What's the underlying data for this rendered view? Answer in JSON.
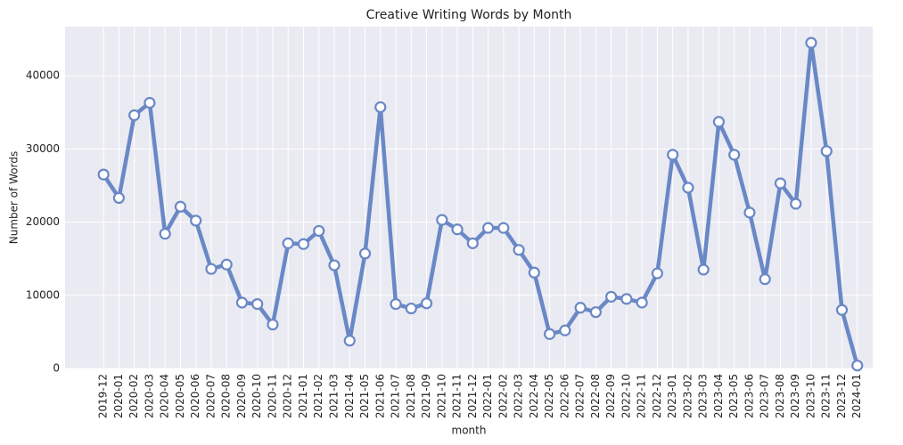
{
  "chart_data": {
    "type": "line",
    "title": "Creative Writing Words by Month",
    "x_label": "month",
    "y_label": "Number of Words",
    "categories": [
      "2019-12",
      "2020-01",
      "2020-02",
      "2020-03",
      "2020-04",
      "2020-05",
      "2020-06",
      "2020-07",
      "2020-08",
      "2020-09",
      "2020-10",
      "2020-11",
      "2020-12",
      "2021-01",
      "2021-02",
      "2021-03",
      "2021-04",
      "2021-05",
      "2021-06",
      "2021-07",
      "2021-08",
      "2021-09",
      "2021-10",
      "2021-11",
      "2021-12",
      "2022-01",
      "2022-02",
      "2022-03",
      "2022-04",
      "2022-05",
      "2022-06",
      "2022-07",
      "2022-08",
      "2022-09",
      "2022-10",
      "2022-11",
      "2022-12",
      "2023-01",
      "2023-02",
      "2023-03",
      "2023-04",
      "2023-05",
      "2023-06",
      "2023-07",
      "2023-08",
      "2023-09",
      "2023-10",
      "2023-11",
      "2023-12",
      "2024-01"
    ],
    "values": [
      26500,
      23300,
      34600,
      36300,
      18400,
      22100,
      20200,
      13600,
      14200,
      9000,
      8800,
      6000,
      17100,
      17000,
      18800,
      14100,
      3800,
      15700,
      35700,
      8800,
      8200,
      8900,
      20300,
      19000,
      17100,
      19200,
      19200,
      16200,
      13100,
      4700,
      5200,
      8300,
      7700,
      9800,
      9500,
      9000,
      13000,
      29200,
      24700,
      13500,
      33700,
      29200,
      21300,
      12200,
      25300,
      22500,
      44500,
      29700,
      8000,
      400
    ],
    "color": "#6a88c6",
    "ylim": [
      0,
      46700
    ],
    "yticks": [
      0,
      10000,
      20000,
      30000,
      40000
    ],
    "grid": true
  }
}
